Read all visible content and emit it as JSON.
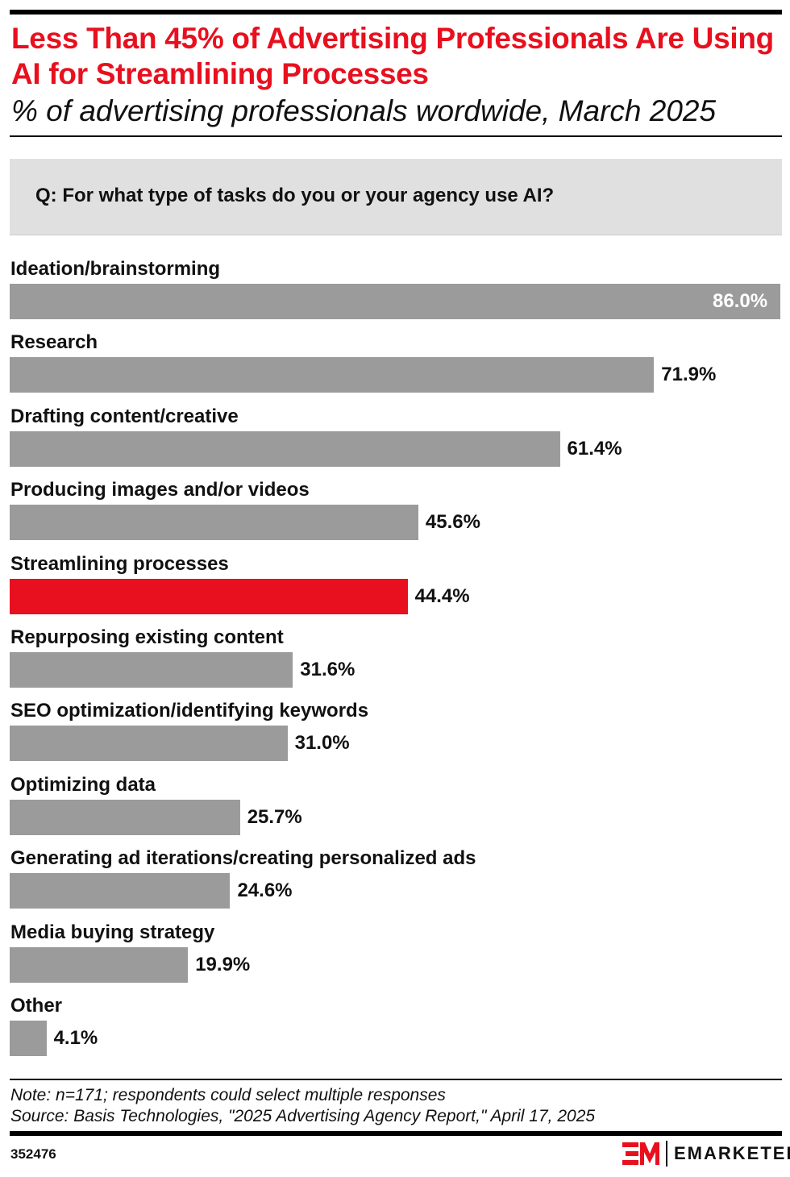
{
  "header": {
    "title": "Less Than 45% of Advertising Professionals Are Using AI for Streamlining Processes",
    "subtitle": "% of advertising professionals wordwide, March 2025",
    "question": "Q: For what type of tasks do you or your agency use AI?"
  },
  "chart_data": {
    "type": "bar",
    "orientation": "horizontal",
    "title": "Less Than 45% of Advertising Professionals Are Using AI for Streamlining Processes",
    "categories": [
      "Ideation/brainstorming",
      "Research",
      "Drafting content/creative",
      "Producing images and/or videos",
      "Streamlining processes",
      "Repurposing existing content",
      "SEO optimization/identifying keywords",
      "Optimizing data",
      "Generating ad iterations/creating personalized ads",
      "Media buying strategy",
      "Other"
    ],
    "values": [
      86.0,
      71.9,
      61.4,
      45.6,
      44.4,
      31.6,
      31.0,
      25.7,
      24.6,
      19.9,
      4.1
    ],
    "labels": [
      "86.0%",
      "71.9%",
      "61.4%",
      "45.6%",
      "44.4%",
      "31.6%",
      "31.0%",
      "25.7%",
      "24.6%",
      "19.9%",
      "4.1%"
    ],
    "highlight_index": 4,
    "xlim": [
      0,
      86
    ],
    "colors": {
      "default": "#9b9b9b",
      "highlight": "#e8101e"
    }
  },
  "footer": {
    "note": "Note: n=171; respondents could select multiple responses",
    "source": "Source: Basis Technologies, \"2025 Advertising Agency Report,\" April 17, 2025",
    "id": "352476",
    "logo": "EMARKETER"
  }
}
